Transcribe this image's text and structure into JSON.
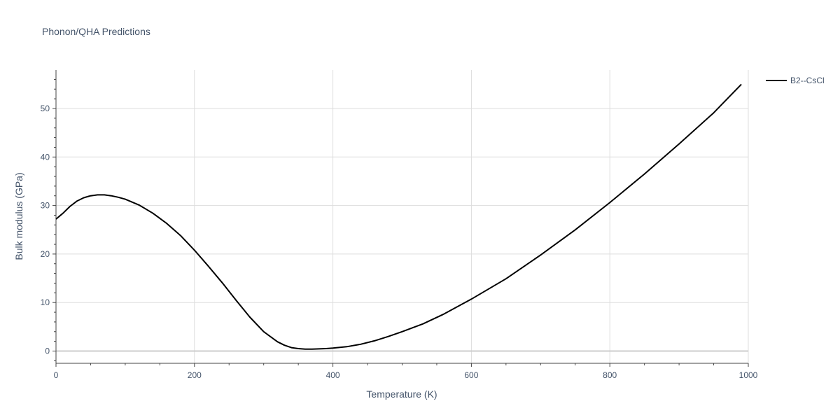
{
  "chart_data": {
    "type": "line",
    "title": "Phonon/QHA Predictions",
    "xlabel": "Temperature (K)",
    "ylabel": "Bulk modulus (GPa)",
    "xlim": [
      0,
      1000
    ],
    "ylim": [
      -2.5,
      58
    ],
    "x_ticks": [
      "0",
      "200",
      "400",
      "600",
      "800",
      "1000"
    ],
    "y_ticks": [
      "0",
      "10",
      "20",
      "30",
      "40",
      "50"
    ],
    "grid": true,
    "legend_position": "top-right",
    "colors": {
      "line": "#000000",
      "grid": "#dddddd",
      "zeroline": "#cccccc",
      "text": "#44546a"
    },
    "series": [
      {
        "name": "B2--CsCl",
        "x": [
          0,
          10,
          20,
          30,
          40,
          50,
          60,
          70,
          80,
          90,
          100,
          120,
          140,
          160,
          180,
          200,
          220,
          240,
          260,
          280,
          300,
          320,
          330,
          340,
          350,
          360,
          370,
          380,
          390,
          400,
          420,
          440,
          460,
          480,
          500,
          530,
          560,
          600,
          650,
          700,
          750,
          800,
          850,
          900,
          950,
          990
        ],
        "y": [
          27.2,
          28.4,
          29.8,
          30.9,
          31.6,
          32.0,
          32.2,
          32.2,
          32.0,
          31.7,
          31.3,
          30.1,
          28.4,
          26.3,
          23.8,
          20.8,
          17.5,
          14.1,
          10.5,
          7.0,
          4.0,
          1.9,
          1.2,
          0.7,
          0.5,
          0.4,
          0.4,
          0.45,
          0.5,
          0.6,
          0.9,
          1.4,
          2.1,
          3.0,
          4.0,
          5.6,
          7.6,
          10.7,
          14.9,
          19.8,
          25.0,
          30.6,
          36.5,
          42.7,
          49.1,
          55.0
        ]
      }
    ]
  }
}
